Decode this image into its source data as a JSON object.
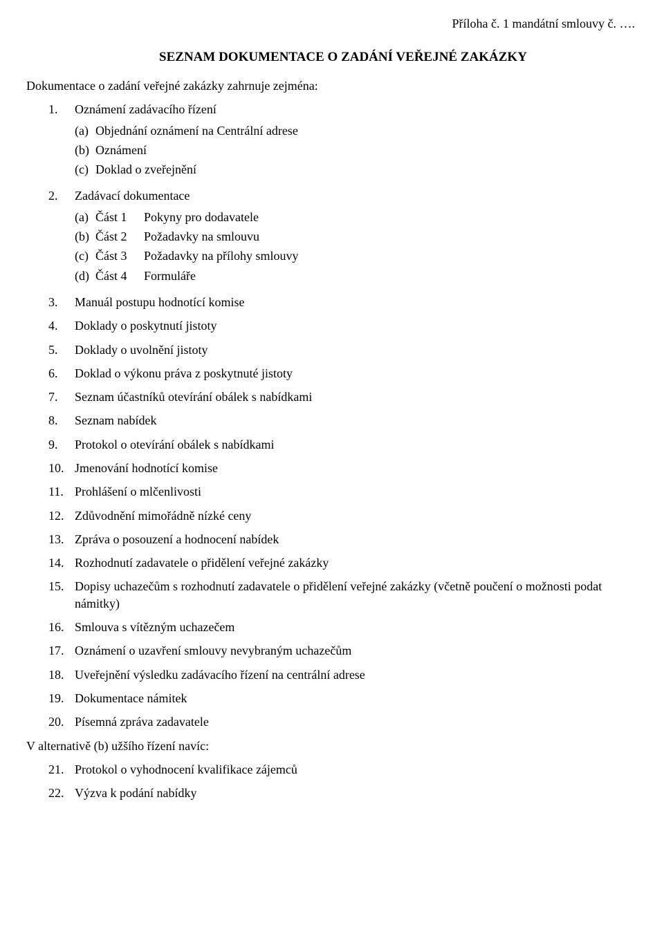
{
  "header": "Příloha č. 1 mandátní smlouvy č. ….",
  "title": "SEZNAM DOKUMENTACE O ZADÁNÍ VEŘEJNÉ ZAKÁZKY",
  "intro": "Dokumentace o zadání veřejné zakázky zahrnuje zejména:",
  "items": [
    {
      "num": "1.",
      "text": "Oznámení zadávacího řízení",
      "sub": [
        {
          "marker": "(a)",
          "text": "Objednání oznámení na Centrální adrese"
        },
        {
          "marker": "(b)",
          "text": "Oznámení"
        },
        {
          "marker": "(c)",
          "text": "Doklad o zveřejnění"
        }
      ]
    },
    {
      "num": "2.",
      "text": "Zadávací dokumentace",
      "sub_parts": [
        {
          "marker": "(a)",
          "part": "Část 1",
          "text": "Pokyny pro dodavatele"
        },
        {
          "marker": "(b)",
          "part": "Část 2",
          "text": "Požadavky na smlouvu"
        },
        {
          "marker": "(c)",
          "part": "Část 3",
          "text": "Požadavky na přílohy smlouvy"
        },
        {
          "marker": "(d)",
          "part": "Část 4",
          "text": "Formuláře"
        }
      ]
    },
    {
      "num": "3.",
      "text": "Manuál postupu hodnotící komise"
    },
    {
      "num": "4.",
      "text": "Doklady o poskytnutí jistoty"
    },
    {
      "num": "5.",
      "text": "Doklady o uvolnění jistoty"
    },
    {
      "num": "6.",
      "text": "Doklad o výkonu práva z poskytnuté jistoty"
    },
    {
      "num": "7.",
      "text": "Seznam účastníků otevírání obálek s nabídkami"
    },
    {
      "num": "8.",
      "text": "Seznam nabídek"
    },
    {
      "num": "9.",
      "text": "Protokol o otevírání obálek s nabídkami"
    },
    {
      "num": "10.",
      "text": "Jmenování hodnotící komise"
    },
    {
      "num": "11.",
      "text": "Prohlášení o mlčenlivosti"
    },
    {
      "num": "12.",
      "text": "Zdůvodnění mimořádně nízké ceny"
    },
    {
      "num": "13.",
      "text": "Zpráva o posouzení a hodnocení nabídek"
    },
    {
      "num": "14.",
      "text": "Rozhodnutí zadavatele o přidělení veřejné zakázky"
    },
    {
      "num": "15.",
      "text": "Dopisy uchazečům s rozhodnutí zadavatele o přidělení veřejné zakázky (včetně poučení o možnosti podat námitky)"
    },
    {
      "num": "16.",
      "text": "Smlouva s vítězným uchazečem"
    },
    {
      "num": "17.",
      "text": "Oznámení o uzavření smlouvy nevybraným uchazečům"
    },
    {
      "num": "18.",
      "text": "Uveřejnění výsledku zadávacího řízení na centrální adrese"
    },
    {
      "num": "19.",
      "text": "Dokumentace námitek"
    },
    {
      "num": "20.",
      "text": "Písemná zpráva zadavatele"
    }
  ],
  "alt_note": "V alternativě (b) užšího řízení navíc:",
  "alt_items": [
    {
      "num": "21.",
      "text": "Protokol o vyhodnocení kvalifikace zájemců"
    },
    {
      "num": "22.",
      "text": "Výzva k podání nabídky"
    }
  ]
}
